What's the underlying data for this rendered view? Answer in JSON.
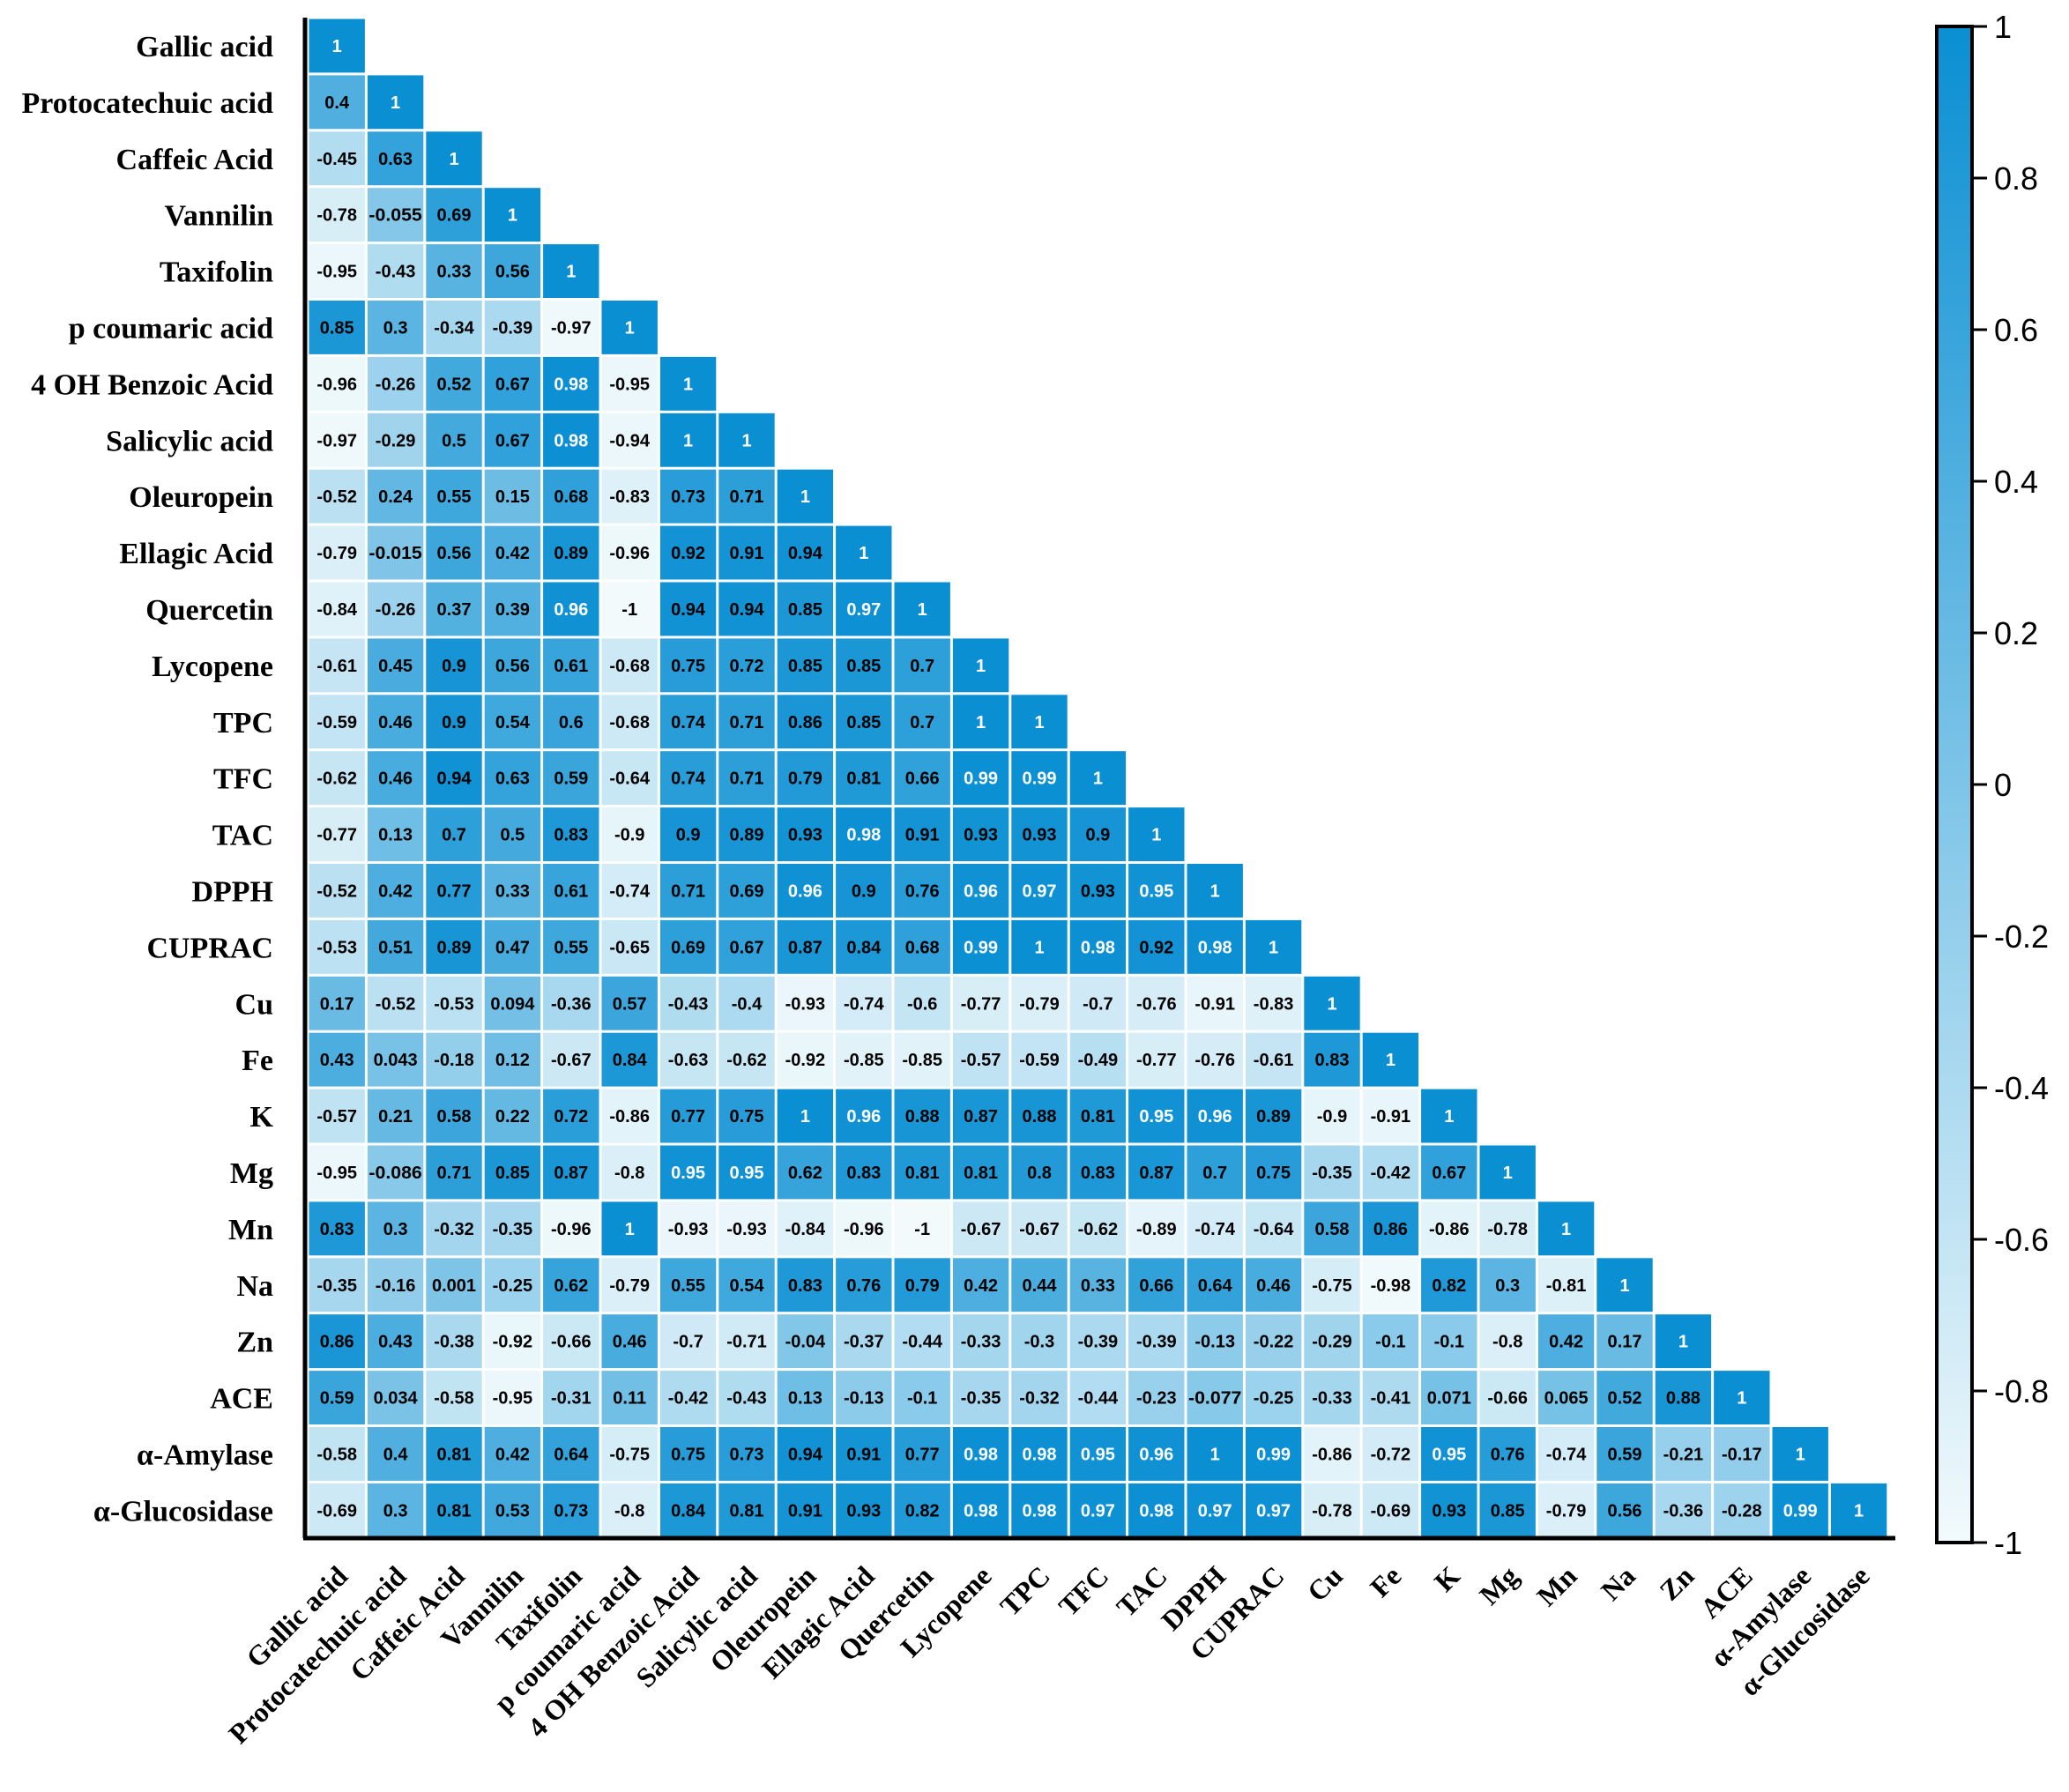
{
  "chart_data": {
    "type": "heatmap",
    "title": "",
    "labels": [
      "Gallic acid",
      "Protocatechuic acid",
      "Caffeic Acid",
      "Vannilin",
      "Taxifolin",
      "p coumaric acid",
      "4 OH Benzoic Acid",
      "Salicylic acid",
      "Oleuropein",
      "Ellagic Acid",
      "Quercetin",
      "Lycopene",
      "TPC",
      "TFC",
      "TAC",
      "DPPH",
      "CUPRAC",
      "Cu",
      "Fe",
      "K",
      "Mg",
      "Mn",
      "Na",
      "Zn",
      "ACE",
      "α-Amylase",
      "α-Glucosidase"
    ],
    "x_labels": [
      "Gallic acid",
      "Protocatechuic acid",
      "Caffeic Acid",
      "Vannilin",
      "Taxifolin",
      "p coumaric acid",
      "4 OH Benzoic Acid",
      "Salicylic acid",
      "Oleuropein",
      "Ellagic Acid",
      "Quercetin",
      "Lycopene",
      "TPC",
      "TFC",
      "TAC",
      "DPPH",
      "CUPRAC",
      "Cu",
      "Fe",
      "K",
      "Mg",
      "Mn",
      "Na",
      "Zn",
      "ACE",
      "α-Amylase",
      "α-Glucosidase"
    ],
    "matrix_lower": [
      [
        "1"
      ],
      [
        "0.4",
        "1"
      ],
      [
        "-0.45",
        "0.63",
        "1"
      ],
      [
        "-0.78",
        "-0.055",
        "0.69",
        "1"
      ],
      [
        "-0.95",
        "-0.43",
        "0.33",
        "0.56",
        "1"
      ],
      [
        "0.85",
        "0.3",
        "-0.34",
        "-0.39",
        "-0.97",
        "1"
      ],
      [
        "-0.96",
        "-0.26",
        "0.52",
        "0.67",
        "0.98",
        "-0.95",
        "1"
      ],
      [
        "-0.97",
        "-0.29",
        "0.5",
        "0.67",
        "0.98",
        "-0.94",
        "1",
        "1"
      ],
      [
        "-0.52",
        "0.24",
        "0.55",
        "0.15",
        "0.68",
        "-0.83",
        "0.73",
        "0.71",
        "1"
      ],
      [
        "-0.79",
        "-0.015",
        "0.56",
        "0.42",
        "0.89",
        "-0.96",
        "0.92",
        "0.91",
        "0.94",
        "1"
      ],
      [
        "-0.84",
        "-0.26",
        "0.37",
        "0.39",
        "0.96",
        "-1",
        "0.94",
        "0.94",
        "0.85",
        "0.97",
        "1"
      ],
      [
        "-0.61",
        "0.45",
        "0.9",
        "0.56",
        "0.61",
        "-0.68",
        "0.75",
        "0.72",
        "0.85",
        "0.85",
        "0.7",
        "1"
      ],
      [
        "-0.59",
        "0.46",
        "0.9",
        "0.54",
        "0.6",
        "-0.68",
        "0.74",
        "0.71",
        "0.86",
        "0.85",
        "0.7",
        "1",
        "1"
      ],
      [
        "-0.62",
        "0.46",
        "0.94",
        "0.63",
        "0.59",
        "-0.64",
        "0.74",
        "0.71",
        "0.79",
        "0.81",
        "0.66",
        "0.99",
        "0.99",
        "1"
      ],
      [
        "-0.77",
        "0.13",
        "0.7",
        "0.5",
        "0.83",
        "-0.9",
        "0.9",
        "0.89",
        "0.93",
        "0.98",
        "0.91",
        "0.93",
        "0.93",
        "0.9",
        "1"
      ],
      [
        "-0.52",
        "0.42",
        "0.77",
        "0.33",
        "0.61",
        "-0.74",
        "0.71",
        "0.69",
        "0.96",
        "0.9",
        "0.76",
        "0.96",
        "0.97",
        "0.93",
        "0.95",
        "1"
      ],
      [
        "-0.53",
        "0.51",
        "0.89",
        "0.47",
        "0.55",
        "-0.65",
        "0.69",
        "0.67",
        "0.87",
        "0.84",
        "0.68",
        "0.99",
        "1",
        "0.98",
        "0.92",
        "0.98",
        "1"
      ],
      [
        "0.17",
        "-0.52",
        "-0.53",
        "0.094",
        "-0.36",
        "0.57",
        "-0.43",
        "-0.4",
        "-0.93",
        "-0.74",
        "-0.6",
        "-0.77",
        "-0.79",
        "-0.7",
        "-0.76",
        "-0.91",
        "-0.83",
        "1"
      ],
      [
        "0.43",
        "0.043",
        "-0.18",
        "0.12",
        "-0.67",
        "0.84",
        "-0.63",
        "-0.62",
        "-0.92",
        "-0.85",
        "-0.85",
        "-0.57",
        "-0.59",
        "-0.49",
        "-0.77",
        "-0.76",
        "-0.61",
        "0.83",
        "1"
      ],
      [
        "-0.57",
        "0.21",
        "0.58",
        "0.22",
        "0.72",
        "-0.86",
        "0.77",
        "0.75",
        "1",
        "0.96",
        "0.88",
        "0.87",
        "0.88",
        "0.81",
        "0.95",
        "0.96",
        "0.89",
        "-0.9",
        "-0.91",
        "1"
      ],
      [
        "-0.95",
        "-0.086",
        "0.71",
        "0.85",
        "0.87",
        "-0.8",
        "0.95",
        "0.95",
        "0.62",
        "0.83",
        "0.81",
        "0.81",
        "0.8",
        "0.83",
        "0.87",
        "0.7",
        "0.75",
        "-0.35",
        "-0.42",
        "0.67",
        "1"
      ],
      [
        "0.83",
        "0.3",
        "-0.32",
        "-0.35",
        "-0.96",
        "1",
        "-0.93",
        "-0.93",
        "-0.84",
        "-0.96",
        "-1",
        "-0.67",
        "-0.67",
        "-0.62",
        "-0.89",
        "-0.74",
        "-0.64",
        "0.58",
        "0.86",
        "-0.86",
        "-0.78",
        "1"
      ],
      [
        "-0.35",
        "-0.16",
        "0.001",
        "-0.25",
        "0.62",
        "-0.79",
        "0.55",
        "0.54",
        "0.83",
        "0.76",
        "0.79",
        "0.42",
        "0.44",
        "0.33",
        "0.66",
        "0.64",
        "0.46",
        "-0.75",
        "-0.98",
        "0.82",
        "0.3",
        "-0.81",
        "1"
      ],
      [
        "0.86",
        "0.43",
        "-0.38",
        "-0.92",
        "-0.66",
        "0.46",
        "-0.7",
        "-0.71",
        "-0.04",
        "-0.37",
        "-0.44",
        "-0.33",
        "-0.3",
        "-0.39",
        "-0.39",
        "-0.13",
        "-0.22",
        "-0.29",
        "-0.1",
        "-0.1",
        "-0.8",
        "0.42",
        "0.17",
        "1"
      ],
      [
        "0.59",
        "0.034",
        "-0.58",
        "-0.95",
        "-0.31",
        "0.11",
        "-0.42",
        "-0.43",
        "0.13",
        "-0.13",
        "-0.1",
        "-0.35",
        "-0.32",
        "-0.44",
        "-0.23",
        "-0.077",
        "-0.25",
        "-0.33",
        "-0.41",
        "0.071",
        "-0.66",
        "0.065",
        "0.52",
        "0.88",
        "1"
      ],
      [
        "-0.58",
        "0.4",
        "0.81",
        "0.42",
        "0.64",
        "-0.75",
        "0.75",
        "0.73",
        "0.94",
        "0.91",
        "0.77",
        "0.98",
        "0.98",
        "0.95",
        "0.96",
        "1",
        "0.99",
        "-0.86",
        "-0.72",
        "0.95",
        "0.76",
        "-0.74",
        "0.59",
        "-0.21",
        "-0.17",
        "1"
      ],
      [
        "-0.69",
        "0.3",
        "0.81",
        "0.53",
        "0.73",
        "-0.8",
        "0.84",
        "0.81",
        "0.91",
        "0.93",
        "0.82",
        "0.98",
        "0.98",
        "0.97",
        "0.98",
        "0.97",
        "0.97",
        "-0.78",
        "-0.69",
        "0.93",
        "0.85",
        "-0.79",
        "0.56",
        "-0.36",
        "-0.28",
        "0.99",
        "1"
      ]
    ],
    "colorbar": {
      "min": -1,
      "max": 1,
      "ticks": [
        "1",
        "0.8",
        "0.6",
        "0.4",
        "0.2",
        "0",
        "-0.2",
        "-0.4",
        "-0.6",
        "-0.8",
        "-1"
      ],
      "low_color": "#f2fafc",
      "high_color": "#0a8fd3"
    },
    "colors": {
      "text_dark": "#000000",
      "text_light": "#ffffff",
      "axis": "#000000"
    }
  }
}
